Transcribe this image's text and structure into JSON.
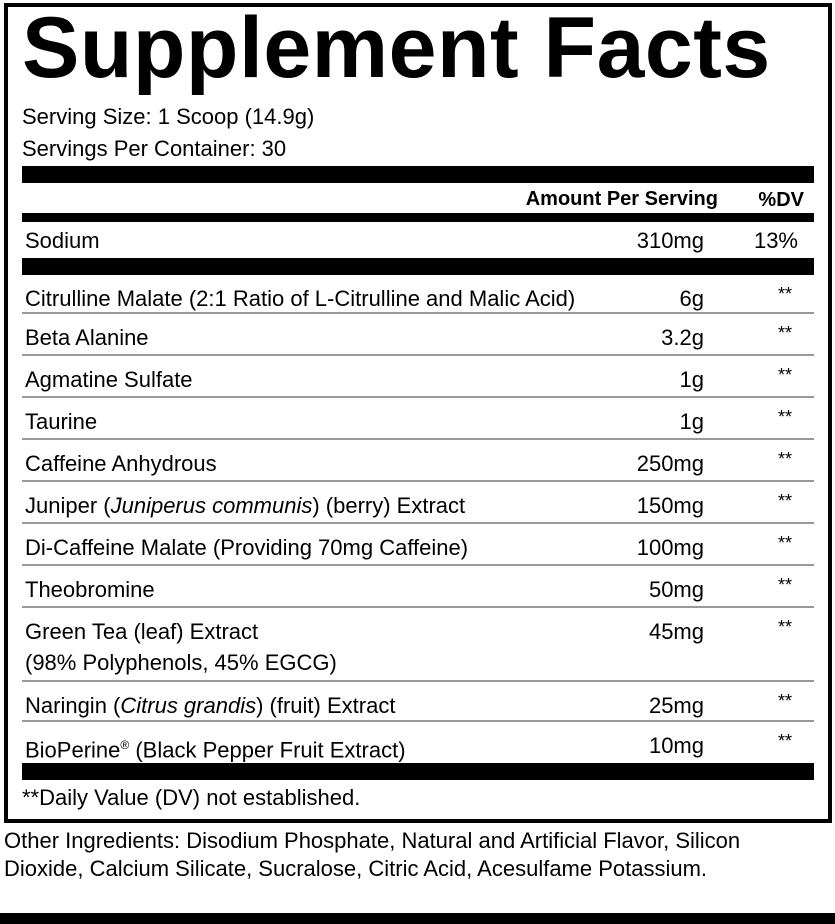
{
  "title": "Supplement Facts",
  "serving_size": "Serving Size: 1 Scoop (14.9g)",
  "servings_per_container": "Servings Per Container: 30",
  "header": {
    "amount": "Amount Per Serving",
    "dv": "%DV"
  },
  "sodium": {
    "name": "Sodium",
    "amount": "310mg",
    "dv": "13%"
  },
  "ingredients": [
    {
      "name": [
        {
          "t": "Citrulline Malate (2:1 Ratio of L-Citrulline and Malic Acid)"
        }
      ],
      "amount": "6g",
      "dv": "**"
    },
    {
      "name": [
        {
          "t": "Beta Alanine"
        }
      ],
      "amount": "3.2g",
      "dv": "**"
    },
    {
      "name": [
        {
          "t": "Agmatine Sulfate"
        }
      ],
      "amount": "1g",
      "dv": "**"
    },
    {
      "name": [
        {
          "t": "Taurine"
        }
      ],
      "amount": "1g",
      "dv": "**"
    },
    {
      "name": [
        {
          "t": "Caffeine Anhydrous"
        }
      ],
      "amount": "250mg",
      "dv": "**"
    },
    {
      "name": [
        {
          "t": "Juniper ("
        },
        {
          "t": "Juniperus communis",
          "i": true
        },
        {
          "t": ") (berry) Extract"
        }
      ],
      "amount": "150mg",
      "dv": "**"
    },
    {
      "name": [
        {
          "t": "Di-Caffeine Malate (Providing 70mg Caffeine)"
        }
      ],
      "amount": "100mg",
      "dv": "**"
    },
    {
      "name": [
        {
          "t": "Theobromine"
        }
      ],
      "amount": "50mg",
      "dv": "**"
    },
    {
      "name": [
        {
          "t": "Green Tea (leaf) Extract"
        },
        {
          "br": true
        },
        {
          "t": "(98% Polyphenols, 45% EGCG)"
        }
      ],
      "amount": "45mg",
      "dv": "**"
    },
    {
      "name": [
        {
          "t": "Naringin ("
        },
        {
          "t": "Citrus grandis",
          "i": true
        },
        {
          "t": ") (fruit) Extract"
        }
      ],
      "amount": "25mg",
      "dv": "**"
    },
    {
      "name": [
        {
          "t": "BioPerine"
        },
        {
          "t": "®",
          "sup": true
        },
        {
          "t": " (Black Pepper Fruit Extract)"
        }
      ],
      "amount": "10mg",
      "dv": "**"
    }
  ],
  "footnote": "**Daily Value (DV) not established.",
  "other_ingredients": "Other Ingredients: Disodium Phosphate, Natural and Artificial Flavor, Silicon Dioxide, Calcium Silicate, Sucralose, Citric Acid, Acesulfame Potassium."
}
